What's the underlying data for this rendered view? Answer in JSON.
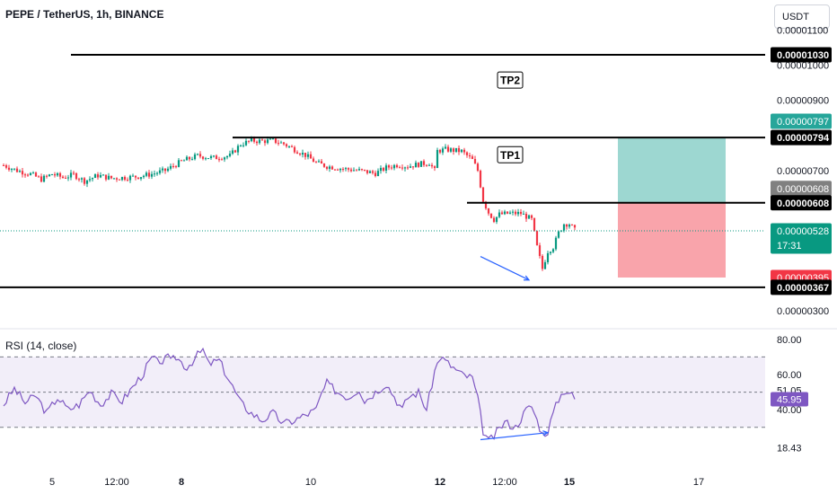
{
  "header": {
    "symbol": "PEPE / TetherUS, 1h, BINANCE",
    "currency": "USDT"
  },
  "price_axis": {
    "ticks": [
      {
        "v": 1100,
        "label": "0.00001100"
      },
      {
        "v": 1000,
        "label": "0.00001000"
      },
      {
        "v": 900,
        "label": "0.00000900"
      },
      {
        "v": 700,
        "label": "0.00000700"
      },
      {
        "v": 300,
        "label": "0.00000300"
      }
    ],
    "tags": [
      {
        "v": 1030,
        "label": "0.00001030",
        "bg": "#000000",
        "fg": "#ffffff",
        "border": "#000000"
      },
      {
        "v": 797,
        "label": "0.00000797",
        "bg": "#26a69a",
        "fg": "#ffffff",
        "border": "#26a69a"
      },
      {
        "v": 794,
        "label": "0.00000794",
        "bg": "#000000",
        "fg": "#ffffff",
        "border": "#000000"
      },
      {
        "v": 608,
        "label": "0.00000608",
        "bg": "#808080",
        "fg": "#ffffff",
        "border": "#808080"
      },
      {
        "v": 608,
        "label": "0.00000608",
        "bg": "#000000",
        "fg": "#ffffff",
        "border": "#000000"
      },
      {
        "v": 528,
        "label": "0.00000528",
        "bg": "#089981",
        "fg": "#ffffff",
        "border": "#089981",
        "sub": "17:31"
      },
      {
        "v": 395,
        "label": "0.00000395",
        "bg": "#f23645",
        "fg": "#ffffff",
        "border": "#f23645"
      },
      {
        "v": 367,
        "label": "0.00000367",
        "bg": "#000000",
        "fg": "#ffffff",
        "border": "#000000"
      }
    ]
  },
  "time_axis": [
    {
      "i": 18,
      "label": "5"
    },
    {
      "i": 42,
      "label": "12:00"
    },
    {
      "i": 66,
      "label": "8"
    },
    {
      "i": 114,
      "label": "10"
    },
    {
      "i": 162,
      "label": "12"
    },
    {
      "i": 186,
      "label": "12:00"
    },
    {
      "i": 210,
      "label": "15"
    },
    {
      "i": 258,
      "label": "17"
    }
  ],
  "annotations": {
    "tp1": "TP1",
    "tp2": "TP2",
    "hlines": [
      {
        "v": 1030,
        "i0": 25
      },
      {
        "v": 794,
        "i0": 85
      },
      {
        "v": 608,
        "i0": 172
      },
      {
        "v": 367,
        "i0": -20
      }
    ],
    "position": {
      "i0": 228,
      "i1": 268,
      "entry": 608,
      "target": 794,
      "stop": 395
    },
    "divergence_price": {
      "i0": 177,
      "p0": 455,
      "i1": 195,
      "p1": 388
    },
    "divergence_rsi": {
      "i0": 177,
      "r0": 23,
      "i1": 202,
      "r1": 27
    }
  },
  "rsi": {
    "title": "RSI (14, close)",
    "upper": 70,
    "lower": 30,
    "mid": 50,
    "ticks": [
      {
        "v": 80,
        "label": "80.00"
      },
      {
        "v": 60,
        "label": "60.00"
      },
      {
        "v": 51.05,
        "label": "51.05"
      },
      {
        "v": 40,
        "label": "40.00"
      },
      {
        "v": 18.43,
        "label": "18.43"
      }
    ],
    "current": {
      "v": 45.95,
      "label": "45.95"
    }
  },
  "chart_data": {
    "type": "candlestick",
    "x_axis": "time (1h candles)",
    "ylim": [
      290,
      1140
    ],
    "series": [
      {
        "anchors_close": [
          [
            0,
            715
          ],
          [
            5,
            700
          ],
          [
            10,
            690
          ],
          [
            14,
            675
          ],
          [
            18,
            690
          ],
          [
            22,
            680
          ],
          [
            26,
            688
          ],
          [
            30,
            670
          ],
          [
            35,
            686
          ],
          [
            40,
            678
          ],
          [
            45,
            680
          ],
          [
            50,
            683
          ],
          [
            55,
            690
          ],
          [
            60,
            700
          ],
          [
            66,
            726
          ],
          [
            72,
            742
          ],
          [
            78,
            736
          ],
          [
            84,
            742
          ],
          [
            88,
            775
          ],
          [
            92,
            785
          ],
          [
            96,
            784
          ],
          [
            100,
            785
          ],
          [
            104,
            776
          ],
          [
            108,
            760
          ],
          [
            112,
            744
          ],
          [
            116,
            722
          ],
          [
            120,
            712
          ],
          [
            126,
            705
          ],
          [
            132,
            700
          ],
          [
            138,
            692
          ],
          [
            142,
            708
          ],
          [
            146,
            716
          ],
          [
            150,
            712
          ],
          [
            154,
            718
          ],
          [
            158,
            722
          ],
          [
            160,
            700
          ],
          [
            161,
            756
          ],
          [
            164,
            760
          ],
          [
            170,
            755
          ],
          [
            174,
            730
          ],
          [
            176,
            700
          ],
          [
            178,
            615
          ],
          [
            180,
            580
          ],
          [
            182,
            560
          ],
          [
            184,
            575
          ],
          [
            188,
            578
          ],
          [
            192,
            578
          ],
          [
            196,
            560
          ],
          [
            198,
            482
          ],
          [
            200,
            420
          ],
          [
            202,
            470
          ],
          [
            204,
            482
          ],
          [
            206,
            522
          ],
          [
            208,
            548
          ],
          [
            210,
            548
          ],
          [
            212,
            530
          ]
        ]
      }
    ],
    "rsi_anchors": [
      [
        0,
        43
      ],
      [
        4,
        52
      ],
      [
        8,
        44
      ],
      [
        12,
        48
      ],
      [
        16,
        38
      ],
      [
        20,
        47
      ],
      [
        24,
        40
      ],
      [
        28,
        43
      ],
      [
        32,
        51
      ],
      [
        36,
        43
      ],
      [
        40,
        49
      ],
      [
        44,
        45
      ],
      [
        48,
        53
      ],
      [
        52,
        61
      ],
      [
        54,
        67
      ],
      [
        56,
        70
      ],
      [
        58,
        64
      ],
      [
        60,
        72
      ],
      [
        62,
        67
      ],
      [
        64,
        70
      ],
      [
        68,
        64
      ],
      [
        72,
        71
      ],
      [
        74,
        74
      ],
      [
        76,
        66
      ],
      [
        80,
        68
      ],
      [
        84,
        56
      ],
      [
        88,
        44
      ],
      [
        92,
        38
      ],
      [
        96,
        34
      ],
      [
        100,
        38
      ],
      [
        104,
        32
      ],
      [
        108,
        34
      ],
      [
        112,
        37
      ],
      [
        116,
        40
      ],
      [
        118,
        49
      ],
      [
        120,
        55
      ],
      [
        124,
        50
      ],
      [
        128,
        47
      ],
      [
        132,
        52
      ],
      [
        134,
        45
      ],
      [
        138,
        50
      ],
      [
        142,
        55
      ],
      [
        146,
        45
      ],
      [
        148,
        40
      ],
      [
        150,
        47
      ],
      [
        154,
        50
      ],
      [
        157,
        40
      ],
      [
        160,
        62
      ],
      [
        162,
        70
      ],
      [
        166,
        65
      ],
      [
        170,
        60
      ],
      [
        174,
        58
      ],
      [
        176,
        46
      ],
      [
        178,
        28
      ],
      [
        180,
        22
      ],
      [
        182,
        25
      ],
      [
        186,
        33
      ],
      [
        190,
        30
      ],
      [
        194,
        40
      ],
      [
        196,
        42
      ],
      [
        200,
        26
      ],
      [
        202,
        28
      ],
      [
        204,
        38
      ],
      [
        206,
        46
      ],
      [
        208,
        51
      ],
      [
        210,
        50
      ],
      [
        212,
        46
      ]
    ]
  }
}
